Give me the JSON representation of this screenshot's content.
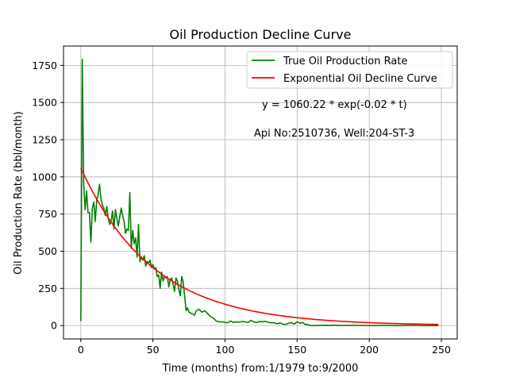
{
  "chart_data": {
    "type": "line",
    "title": "Oil Production Decline Curve",
    "xlabel": "Time (months) from:1/1979 to:9/2000",
    "ylabel": "Oil Production Rate (bbl/month)",
    "xlim": [
      -12,
      261
    ],
    "ylim": [
      -90,
      1880
    ],
    "xticks": [
      0,
      50,
      100,
      150,
      200,
      250
    ],
    "yticks": [
      0,
      250,
      500,
      750,
      1000,
      1250,
      1500,
      1750
    ],
    "grid": true,
    "legend_position": "top-right",
    "annotations": [
      "y = 1060.22 * exp(-0.02 * t)",
      "Api No:2510736, Well:204-ST-3"
    ],
    "series": [
      {
        "name": "True Oil Production Rate",
        "color": "#008000",
        "x": [
          0,
          1,
          2,
          3,
          4,
          5,
          6,
          7,
          8,
          9,
          10,
          11,
          12,
          13,
          14,
          15,
          16,
          17,
          18,
          19,
          20,
          21,
          22,
          23,
          24,
          25,
          26,
          27,
          28,
          29,
          30,
          31,
          32,
          33,
          34,
          35,
          36,
          37,
          38,
          39,
          40,
          41,
          42,
          43,
          44,
          45,
          46,
          47,
          48,
          49,
          50,
          51,
          52,
          53,
          54,
          55,
          56,
          57,
          58,
          59,
          60,
          61,
          62,
          63,
          64,
          65,
          66,
          67,
          68,
          69,
          70,
          71,
          72,
          73,
          74,
          75,
          76,
          77,
          78,
          79,
          80,
          82,
          84,
          86,
          88,
          90,
          92,
          94,
          96,
          98,
          100,
          102,
          104,
          106,
          108,
          110,
          112,
          114,
          116,
          118,
          120,
          122,
          124,
          126,
          128,
          130,
          132,
          134,
          136,
          138,
          140,
          142,
          144,
          146,
          148,
          150,
          152,
          154,
          156,
          157,
          158,
          160,
          170,
          180,
          190,
          200,
          210,
          220,
          230,
          240,
          248
        ],
        "y": [
          30,
          1790,
          950,
          780,
          905,
          760,
          760,
          560,
          790,
          830,
          700,
          840,
          880,
          950,
          850,
          810,
          790,
          740,
          800,
          720,
          680,
          700,
          770,
          650,
          780,
          720,
          670,
          730,
          790,
          740,
          700,
          620,
          650,
          640,
          895,
          520,
          640,
          550,
          590,
          460,
          680,
          430,
          460,
          440,
          470,
          400,
          430,
          420,
          440,
          390,
          410,
          380,
          390,
          330,
          340,
          250,
          360,
          300,
          330,
          320,
          330,
          260,
          310,
          320,
          280,
          230,
          320,
          300,
          240,
          200,
          330,
          290,
          200,
          100,
          120,
          90,
          85,
          80,
          75,
          70,
          100,
          110,
          90,
          100,
          80,
          60,
          50,
          30,
          25,
          25,
          20,
          20,
          30,
          20,
          25,
          22,
          28,
          25,
          20,
          35,
          25,
          20,
          28,
          25,
          28,
          22,
          18,
          20,
          12,
          18,
          10,
          8,
          15,
          20,
          10,
          25,
          15,
          20,
          5,
          10,
          2,
          0,
          2,
          1,
          1,
          0,
          1,
          0,
          1,
          0,
          0
        ]
      },
      {
        "name": "Exponential Oil Decline Curve",
        "color": "#ff0000",
        "a": 1060.22,
        "b": -0.02,
        "x_range": [
          0,
          248
        ]
      }
    ]
  }
}
